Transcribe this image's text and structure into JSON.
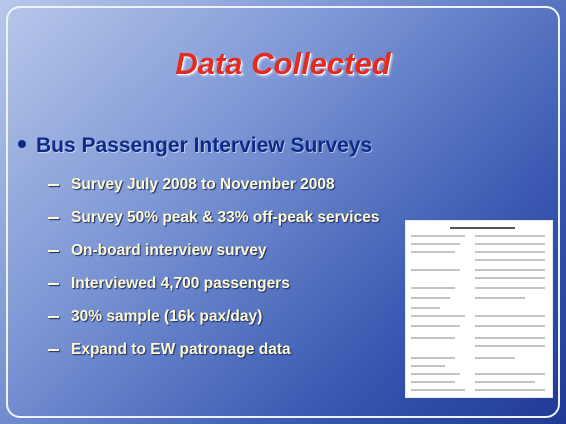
{
  "title": "Data Collected",
  "bullet": "Bus Passenger Interview Surveys",
  "sub_bullets": [
    "Survey July 2008 to November 2008",
    "Survey 50% peak & 33% off-peak services",
    "On-board interview survey",
    "Interviewed 4,700 passengers",
    "30% sample (16k pax/day)",
    "Expand to EW patronage data"
  ]
}
